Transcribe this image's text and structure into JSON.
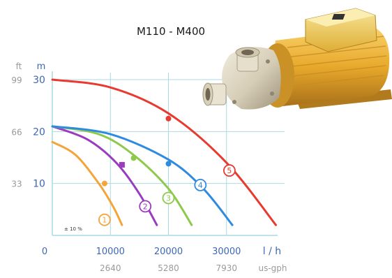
{
  "chart_data": {
    "type": "line",
    "title": "M110 - M400",
    "xlabel": "l / h",
    "x2label": "us-gph",
    "y1label": "m",
    "y2label": "ft",
    "xlim": [
      0,
      40000
    ],
    "ylim": [
      0,
      30
    ],
    "x_ticks": [
      "0",
      "10000",
      "20000",
      "30000"
    ],
    "x_tick_values": [
      0,
      10000,
      20000,
      30000
    ],
    "x2_ticks": [
      "2640",
      "5280",
      "7930"
    ],
    "x2_tick_values": [
      10000,
      20000,
      30000
    ],
    "y_ticks": [
      "10",
      "20",
      "30"
    ],
    "y_tick_values": [
      10,
      20,
      30
    ],
    "y2_ticks": [
      "33",
      "66",
      "99"
    ],
    "y2_tick_values": [
      10,
      20,
      30
    ],
    "grid": true,
    "annotation": "± 10 %",
    "colors": {
      "axis": "#3d67b5",
      "tick_secondary": "#9a9a9a",
      "grid": "#a9dbe3",
      "background": "#ffffff"
    },
    "series": [
      {
        "label": "1",
        "color": "#f3a53c",
        "x": [
          0,
          4000,
          8000,
          10500,
          12000
        ],
        "y": [
          18,
          15.5,
          10,
          5.5,
          2
        ],
        "marker": [
          9000,
          10
        ],
        "badge": [
          9000,
          3
        ]
      },
      {
        "label": "2",
        "color": "#9a3cc0",
        "x": [
          0,
          6000,
          11000,
          15000,
          18000
        ],
        "y": [
          21,
          18.5,
          14,
          8,
          2
        ],
        "marker": [
          12000,
          13.6
        ],
        "badge": [
          16000,
          5.6
        ]
      },
      {
        "label": "3",
        "color": "#8ec94b",
        "x": [
          0,
          8000,
          14000,
          20000,
          24000
        ],
        "y": [
          21,
          19.5,
          15.5,
          9,
          2
        ],
        "marker": [
          14000,
          14.9
        ],
        "badge": [
          20000,
          7.2
        ]
      },
      {
        "label": "4",
        "color": "#2f8be0",
        "x": [
          0,
          10000,
          20000,
          26000,
          31000
        ],
        "y": [
          21,
          19.5,
          14.6,
          9,
          2
        ],
        "marker": [
          20000,
          13.8
        ],
        "badge": [
          25500,
          9.7
        ]
      },
      {
        "label": "5",
        "color": "#e83a2f",
        "x": [
          0,
          10000,
          20000,
          30000,
          38500
        ],
        "y": [
          30,
          28.5,
          23.5,
          14,
          2
        ],
        "marker": [
          20000,
          22.5
        ],
        "badge": [
          30500,
          12.5
        ]
      }
    ]
  }
}
